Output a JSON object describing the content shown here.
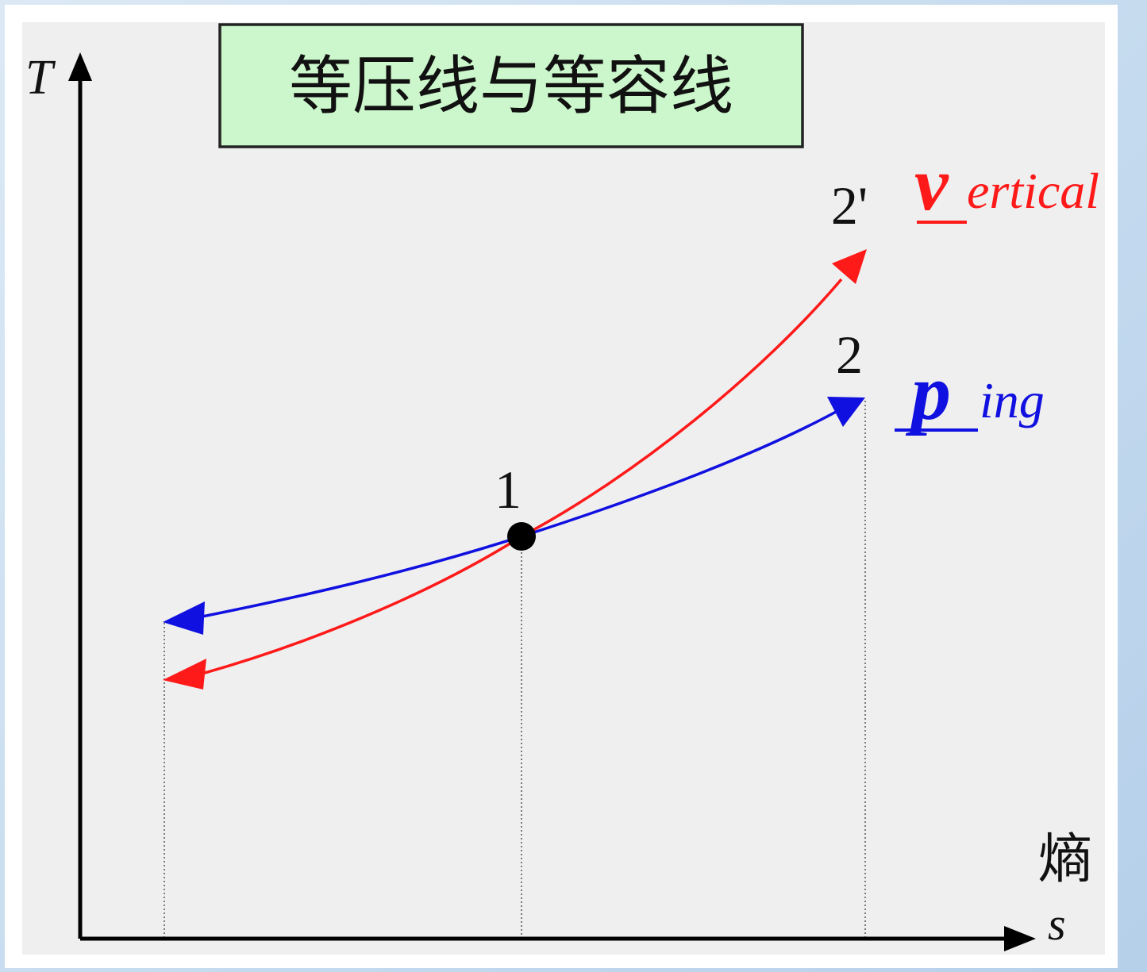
{
  "title": "等压线与等容线",
  "axes": {
    "y_label": "T",
    "x_label": "s",
    "x_label_cn": "熵"
  },
  "points": {
    "p1": "1",
    "p2": "2",
    "p2prime": "2'"
  },
  "curves": {
    "isochoric": {
      "color": "#ff1a1a",
      "initial": "v",
      "rest": "ertical"
    },
    "isobaric": {
      "color": "#1010e0",
      "initial": "p",
      "rest": "ing"
    }
  },
  "colors": {
    "panel": "#efefef",
    "title_box": "#ccf7cc",
    "axis": "#000000"
  }
}
